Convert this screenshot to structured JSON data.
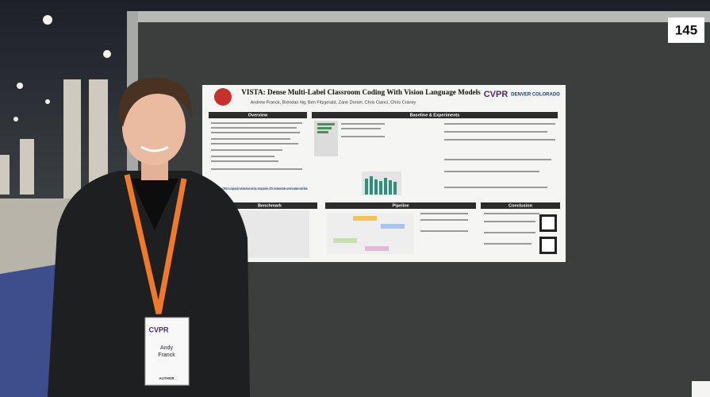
{
  "board": {
    "number": "145"
  },
  "poster": {
    "title": "VISTA: Dense Multi-Label Classroom Coding With Vision Language Models",
    "authors": "Andrew Franck, Brendan Ng, Ben Fitzgerald, Zane Dorsel, Chris Cianci, Chris Craney",
    "conference": "CVPR",
    "location": "DENVER COLORADO",
    "sections": [
      "Overview",
      "Baseline & Experiments",
      "Benchmark",
      "Pipeline",
      "Conclusion"
    ],
    "highlight": "We propose COPUS as a high-quality VLM benchmark and ship a strong baseline, VISTA, that demonstrates current foundation model limits."
  },
  "badge": {
    "conference": "CVPR",
    "first_name": "Andy",
    "last_name": "Franck",
    "role": "AUTHOR"
  }
}
